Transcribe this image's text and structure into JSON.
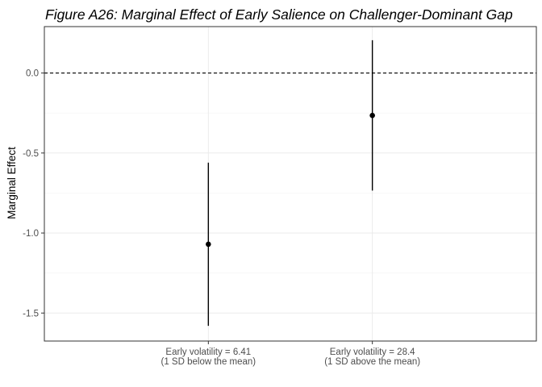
{
  "chart_data": {
    "type": "scatter",
    "title": "Figure A26: Marginal Effect of Early Salience on Challenger-Dominant Gap",
    "xlabel": "",
    "ylabel": "Marginal Effect",
    "categories": [
      [
        "Early volatility = 6.41",
        "(1 SD below the mean)"
      ],
      [
        "Early volatility = 28.4",
        "(1 SD above the mean)"
      ]
    ],
    "points": [
      {
        "estimate": -1.07,
        "lower": -1.58,
        "upper": -0.56
      },
      {
        "estimate": -0.265,
        "lower": -0.735,
        "upper": 0.205
      }
    ],
    "ylim": [
      -1.675,
      0.29
    ],
    "yticks": [
      0.0,
      -0.5,
      -1.0,
      -1.5
    ],
    "ytick_labels": [
      "0.0",
      "-0.5",
      "-1.0",
      "-1.5"
    ],
    "reference_line": 0,
    "grid": true,
    "legend": "none",
    "colors": {
      "point": "#000000",
      "grid": "#ebebeb",
      "panel_border": "#333333",
      "tick_text": "#4d4d4d"
    }
  }
}
